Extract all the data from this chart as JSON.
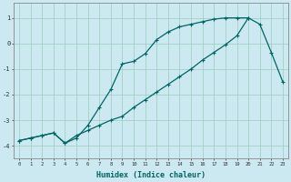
{
  "xlabel": "Humidex (Indice chaleur)",
  "bg_color": "#cce8f0",
  "grid_color": "#99ccbb",
  "line_color": "#006666",
  "line1_x": [
    0,
    1,
    2,
    3,
    4,
    5,
    6,
    7,
    8,
    9,
    10,
    11,
    12,
    13,
    14,
    15,
    16,
    17,
    18,
    19,
    20
  ],
  "line1_y": [
    -3.8,
    -3.7,
    -3.6,
    -3.5,
    -3.9,
    -3.7,
    -3.2,
    -2.5,
    -1.8,
    -0.8,
    -0.7,
    -0.4,
    0.15,
    0.45,
    0.65,
    0.75,
    0.85,
    0.95,
    1.0,
    1.0,
    1.0
  ],
  "line2_x": [
    0,
    1,
    2,
    3,
    4,
    5,
    6,
    7,
    8,
    9,
    10,
    11,
    12,
    13,
    14,
    15,
    16,
    17,
    18,
    19,
    20,
    21,
    22,
    23
  ],
  "line2_y": [
    -3.8,
    -3.7,
    -3.6,
    -3.5,
    -3.9,
    -3.6,
    -3.4,
    -3.2,
    -3.0,
    -2.85,
    -2.5,
    -2.2,
    -1.9,
    -1.6,
    -1.3,
    -1.0,
    -0.65,
    -0.35,
    -0.05,
    0.3,
    1.0,
    0.75,
    -0.35,
    -1.5
  ],
  "xlim": [
    -0.5,
    23.5
  ],
  "ylim": [
    -4.5,
    1.6
  ],
  "yticks": [
    -4,
    -3,
    -2,
    -1,
    0,
    1
  ],
  "xticks": [
    0,
    1,
    2,
    3,
    4,
    5,
    6,
    7,
    8,
    9,
    10,
    11,
    12,
    13,
    14,
    15,
    16,
    17,
    18,
    19,
    20,
    21,
    22,
    23
  ],
  "figwidth": 3.2,
  "figheight": 2.0,
  "dpi": 100
}
